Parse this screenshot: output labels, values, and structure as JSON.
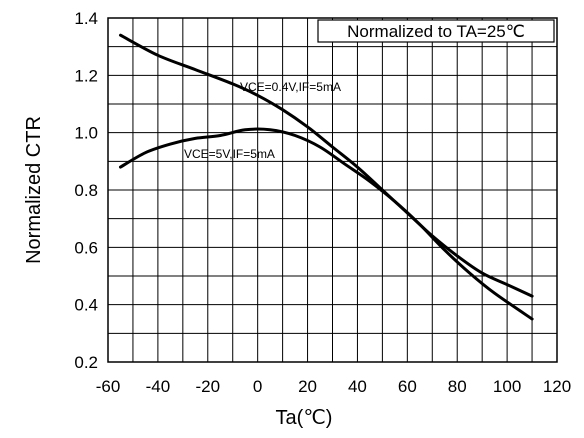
{
  "chart_data": {
    "type": "line",
    "title": "",
    "xlabel": "Ta(℃)",
    "ylabel": "Normalized CTR",
    "xlim": [
      -60,
      120
    ],
    "ylim": [
      0.2,
      1.4
    ],
    "x_ticks": [
      -60,
      -40,
      -20,
      0,
      20,
      40,
      60,
      80,
      100,
      120
    ],
    "x_tick_labels": [
      "-60",
      "-40",
      "-20",
      "0",
      "20",
      "40",
      "60",
      "80",
      "100",
      "120"
    ],
    "y_ticks": [
      0.2,
      0.4,
      0.6,
      0.8,
      1.0,
      1.2,
      1.4
    ],
    "y_tick_labels": [
      "0.2",
      "0.4",
      "0.6",
      "0.8",
      "1.0",
      "1.2",
      "1.4"
    ],
    "x_grid_step": 10,
    "y_grid_step": 0.1,
    "grid": true,
    "annotation": "Normalized to TA=25℃",
    "series": [
      {
        "name": "VCE=0.4V,IF=5mA",
        "x": [
          -55,
          -40,
          -25,
          -10,
          0,
          10,
          20,
          30,
          40,
          50,
          60,
          70,
          80,
          90,
          100,
          110
        ],
        "y": [
          1.34,
          1.27,
          1.22,
          1.17,
          1.13,
          1.08,
          1.02,
          0.95,
          0.88,
          0.8,
          0.72,
          0.64,
          0.57,
          0.51,
          0.47,
          0.43
        ],
        "color": "#000000"
      },
      {
        "name": "VCE=5V,IF=5mA",
        "x": [
          -55,
          -45,
          -35,
          -25,
          -15,
          -5,
          5,
          15,
          25,
          35,
          45,
          55,
          65,
          75,
          85,
          95,
          110
        ],
        "y": [
          0.88,
          0.93,
          0.96,
          0.98,
          0.99,
          1.01,
          1.01,
          0.99,
          0.95,
          0.89,
          0.83,
          0.76,
          0.68,
          0.59,
          0.51,
          0.44,
          0.35
        ],
        "color": "#000000"
      }
    ]
  }
}
